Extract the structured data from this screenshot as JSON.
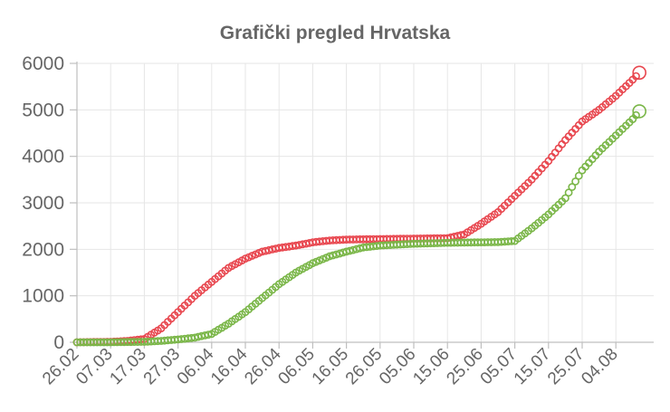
{
  "chart_data": {
    "type": "line",
    "title": "Grafički pregled Hrvatska",
    "xlabel": "",
    "ylabel": "",
    "ylim": [
      0,
      6000
    ],
    "yticks": [
      "0",
      "1000",
      "2000",
      "3000",
      "4000",
      "5000",
      "6000"
    ],
    "x_tick_labels": [
      "26.02",
      "07.03",
      "17.03",
      "27.03",
      "06.04",
      "16.04",
      "26.04",
      "06.05",
      "16.05",
      "26.05",
      "05.06",
      "15.06",
      "25.06",
      "05.07",
      "15.07",
      "25.07",
      "04.08"
    ],
    "grid": true,
    "legend": "none",
    "series": [
      {
        "color": "#e8474f",
        "points": [
          [
            "26.02",
            0
          ],
          [
            "07.03",
            10
          ],
          [
            "12.03",
            30
          ],
          [
            "17.03",
            70
          ],
          [
            "22.03",
            300
          ],
          [
            "27.03",
            650
          ],
          [
            "01.04",
            1000
          ],
          [
            "06.04",
            1300
          ],
          [
            "11.04",
            1600
          ],
          [
            "16.04",
            1800
          ],
          [
            "21.04",
            1950
          ],
          [
            "26.04",
            2030
          ],
          [
            "01.05",
            2080
          ],
          [
            "06.05",
            2150
          ],
          [
            "11.05",
            2190
          ],
          [
            "16.05",
            2210
          ],
          [
            "26.05",
            2220
          ],
          [
            "05.06",
            2230
          ],
          [
            "15.06",
            2240
          ],
          [
            "20.06",
            2320
          ],
          [
            "25.06",
            2550
          ],
          [
            "30.06",
            2800
          ],
          [
            "05.07",
            3150
          ],
          [
            "10.07",
            3500
          ],
          [
            "15.07",
            3900
          ],
          [
            "20.07",
            4350
          ],
          [
            "25.07",
            4750
          ],
          [
            "30.07",
            5000
          ],
          [
            "04.08",
            5300
          ],
          [
            "09.08",
            5650
          ],
          [
            "11.08",
            5800
          ]
        ]
      },
      {
        "color": "#7ab648",
        "points": [
          [
            "26.02",
            0
          ],
          [
            "07.03",
            0
          ],
          [
            "17.03",
            10
          ],
          [
            "22.03",
            30
          ],
          [
            "27.03",
            60
          ],
          [
            "01.04",
            100
          ],
          [
            "06.04",
            180
          ],
          [
            "11.04",
            400
          ],
          [
            "16.04",
            650
          ],
          [
            "21.04",
            950
          ],
          [
            "26.04",
            1250
          ],
          [
            "01.05",
            1500
          ],
          [
            "06.05",
            1700
          ],
          [
            "11.05",
            1850
          ],
          [
            "16.05",
            1950
          ],
          [
            "21.05",
            2040
          ],
          [
            "26.05",
            2080
          ],
          [
            "05.06",
            2120
          ],
          [
            "15.06",
            2140
          ],
          [
            "25.06",
            2150
          ],
          [
            "30.06",
            2155
          ],
          [
            "05.07",
            2180
          ],
          [
            "10.07",
            2450
          ],
          [
            "15.07",
            2750
          ],
          [
            "20.07",
            3100
          ],
          [
            "25.07",
            3700
          ],
          [
            "30.07",
            4100
          ],
          [
            "04.08",
            4450
          ],
          [
            "09.08",
            4800
          ],
          [
            "11.08",
            4970
          ]
        ]
      }
    ]
  }
}
